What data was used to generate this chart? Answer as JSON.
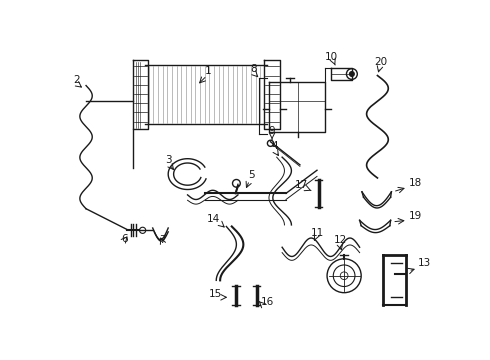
{
  "bg_color": "#ffffff",
  "line_color": "#1a1a1a",
  "lw": 1.0,
  "figsize": [
    4.9,
    3.6
  ],
  "dpi": 100,
  "xlim": [
    0,
    490
  ],
  "ylim": [
    0,
    360
  ]
}
